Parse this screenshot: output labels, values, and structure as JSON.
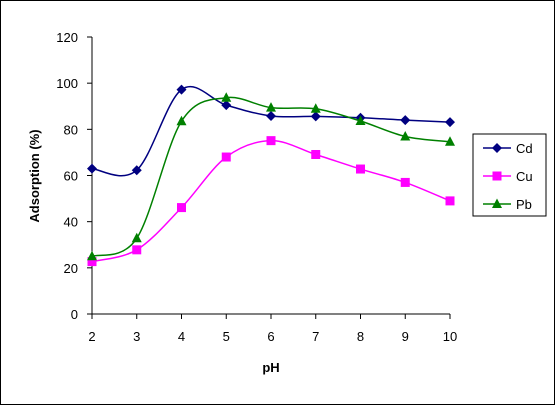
{
  "chart_data": {
    "type": "line",
    "title": "",
    "xlabel": "pH",
    "ylabel": "Adsorption (%)",
    "x": [
      2,
      3,
      4,
      5,
      6,
      7,
      8,
      9,
      10
    ],
    "xlim": [
      2,
      10
    ],
    "ylim": [
      0,
      120
    ],
    "yticks": [
      0,
      20,
      40,
      60,
      80,
      100,
      120
    ],
    "grid": false,
    "smooth": true,
    "legend_position": "right",
    "series": [
      {
        "name": "Cd",
        "color": "#000080",
        "marker": "diamond",
        "values": [
          63,
          62.3,
          97.2,
          90.5,
          85.8,
          85.6,
          85.0,
          84.0,
          83.1
        ]
      },
      {
        "name": "Cu",
        "color": "#FF00FF",
        "marker": "square",
        "values": [
          22.7,
          27.8,
          46.1,
          68.0,
          75.1,
          69.1,
          62.8,
          57.0,
          49.0
        ]
      },
      {
        "name": "Pb",
        "color": "#008000",
        "marker": "triangle",
        "values": [
          25.0,
          32.8,
          83.5,
          93.7,
          89.4,
          88.9,
          83.6,
          76.9,
          74.6
        ]
      }
    ]
  }
}
